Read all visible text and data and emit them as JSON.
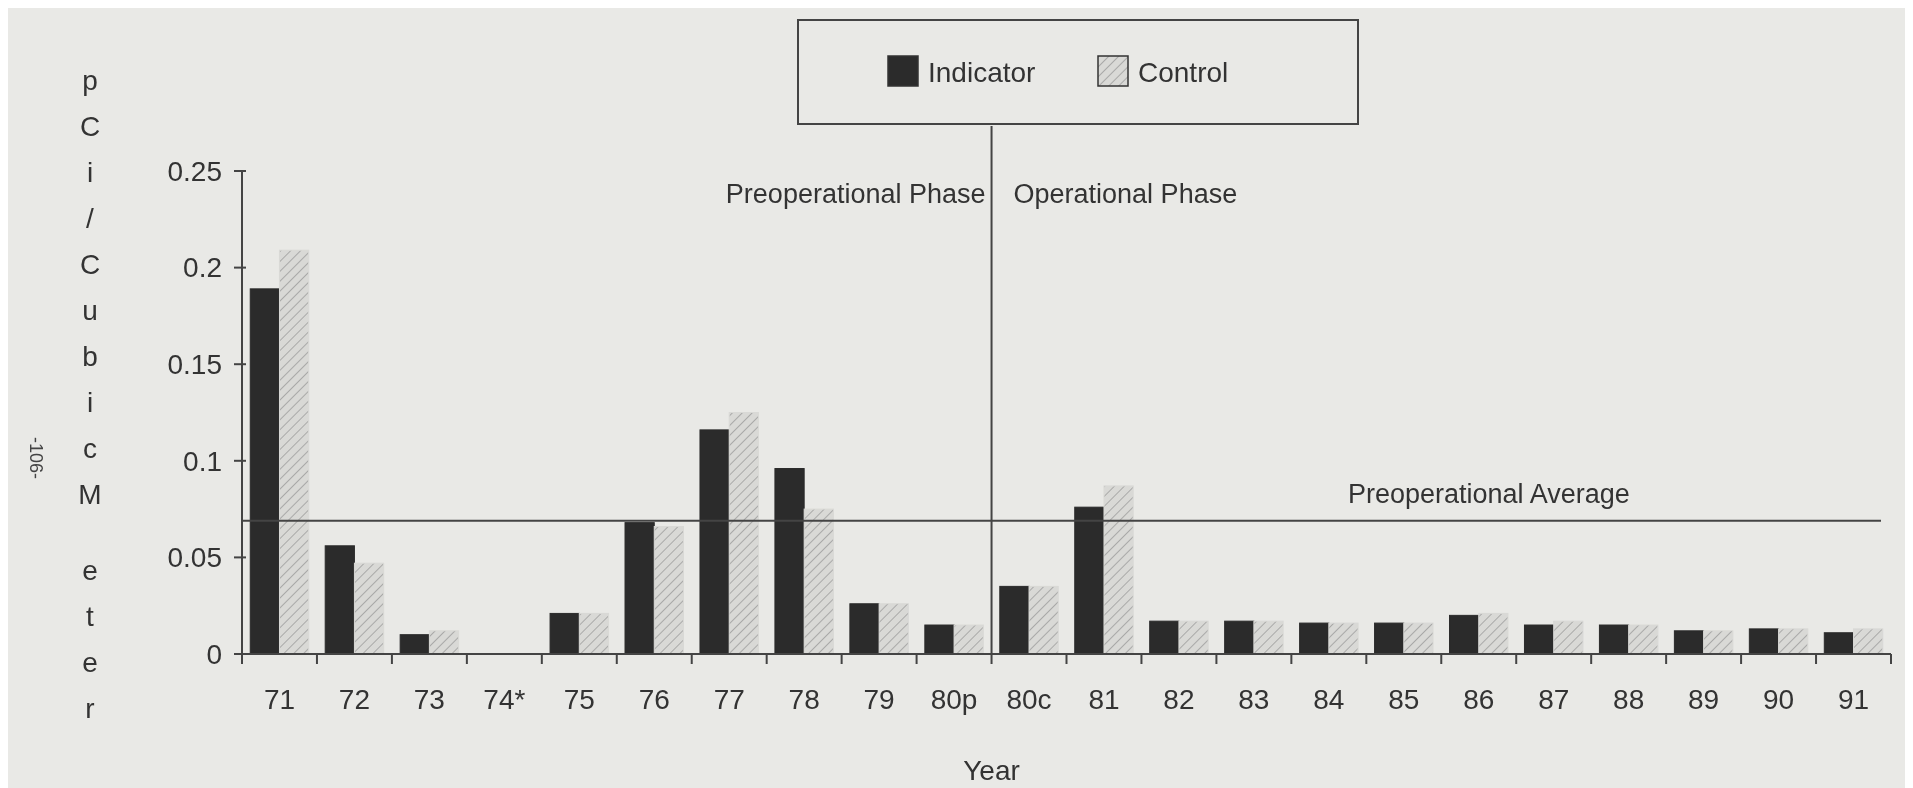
{
  "chart_data": {
    "type": "bar",
    "xlabel": "Year",
    "ylabel": "pCi/Cubic Meter",
    "categories": [
      "71",
      "72",
      "73",
      "74*",
      "75",
      "76",
      "77",
      "78",
      "79",
      "80p",
      "80c",
      "81",
      "82",
      "83",
      "84",
      "85",
      "86",
      "87",
      "88",
      "89",
      "90",
      "91"
    ],
    "series": [
      {
        "name": "Indicator",
        "color": "#2b2b2b",
        "values": [
          0.189,
          0.056,
          0.01,
          null,
          0.021,
          0.068,
          0.116,
          0.096,
          0.026,
          0.015,
          0.035,
          0.076,
          0.017,
          0.017,
          0.016,
          0.016,
          0.02,
          0.015,
          0.015,
          0.012,
          0.013,
          0.011
        ]
      },
      {
        "name": "Control",
        "color": "#d9d9d6",
        "values": [
          0.209,
          0.047,
          0.012,
          null,
          0.021,
          0.066,
          0.125,
          0.075,
          0.026,
          0.015,
          0.035,
          0.087,
          0.017,
          0.017,
          0.016,
          0.016,
          0.021,
          0.017,
          0.015,
          0.012,
          0.013,
          0.013
        ]
      }
    ],
    "ylim": [
      0,
      0.25
    ],
    "yticks": [
      0,
      0.05,
      0.1,
      0.15,
      0.2,
      0.25
    ],
    "ref_lines": [
      {
        "axis": "y",
        "value": 0.069,
        "label": "Preoperational Average"
      }
    ],
    "annotations": [
      "Preoperational Phase",
      "Operational Phase",
      "-106-"
    ],
    "legend": "top",
    "grid": false
  }
}
